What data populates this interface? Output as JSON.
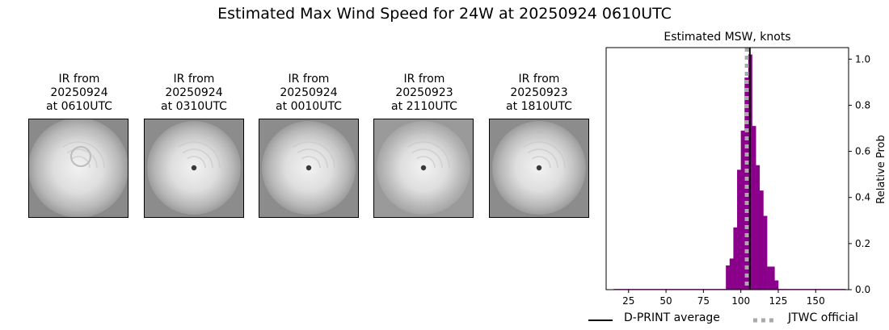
{
  "title": "Estimated Max Wind Speed for 24W at 20250924 0610UTC",
  "thumbnails": [
    {
      "lines": [
        "IR from",
        "20250924",
        "at 0610UTC"
      ],
      "eye": false
    },
    {
      "lines": [
        "IR from",
        "20250924",
        "at 0310UTC"
      ],
      "eye": true
    },
    {
      "lines": [
        "IR from",
        "20250924",
        "at 0010UTC"
      ],
      "eye": true
    },
    {
      "lines": [
        "IR from",
        "20250923",
        "at 2110UTC"
      ],
      "eye": true
    },
    {
      "lines": [
        "IR from",
        "20250923",
        "at 1810UTC"
      ],
      "eye": true
    }
  ],
  "chart_data": {
    "type": "bar",
    "title": "Estimated MSW, knots",
    "ylabel": "Relative Prob",
    "xlim": [
      10,
      172
    ],
    "ylim": [
      0,
      1.05
    ],
    "xticks": [
      25,
      50,
      75,
      100,
      125,
      150
    ],
    "yticks": [
      0.0,
      0.2,
      0.4,
      0.6,
      0.8,
      1.0
    ],
    "y_axis_side": "right",
    "bar_color": "#8b008b",
    "bin_width": 2.5,
    "bins_start": [
      15,
      17.5,
      20,
      22.5,
      25,
      27.5,
      30,
      32.5,
      35,
      37.5,
      40,
      42.5,
      45,
      47.5,
      50,
      52.5,
      55,
      57.5,
      60,
      62.5,
      65,
      67.5,
      70,
      72.5,
      75,
      77.5,
      80,
      82.5,
      85,
      87.5,
      90,
      92.5,
      95,
      97.5,
      100,
      102.5,
      105,
      107.5,
      110,
      112.5,
      115,
      117.5,
      120,
      122.5,
      125,
      127.5,
      130,
      132.5,
      135,
      137.5,
      140,
      142.5,
      145,
      147.5,
      150,
      152.5,
      155,
      157.5,
      160,
      162.5,
      165,
      167.5
    ],
    "values": [
      0.003,
      0.003,
      0.003,
      0.003,
      0.003,
      0.003,
      0.003,
      0.003,
      0.003,
      0.003,
      0.003,
      0.003,
      0.003,
      0.003,
      0.003,
      0.003,
      0.003,
      0.003,
      0.003,
      0.003,
      0.003,
      0.003,
      0.003,
      0.003,
      0.003,
      0.003,
      0.003,
      0.003,
      0.003,
      0.003,
      0.105,
      0.135,
      0.27,
      0.52,
      0.69,
      0.92,
      1.02,
      0.71,
      0.54,
      0.43,
      0.32,
      0.1,
      0.1,
      0.04,
      0.003,
      0.003,
      0.003,
      0.003,
      0.003,
      0.003,
      0.003,
      0.003,
      0.003,
      0.003,
      0.003,
      0.003,
      0.003,
      0.003,
      0.003,
      0.003,
      0.003,
      0.003
    ],
    "dprint_average": 106,
    "jtwc_official": 104,
    "legend": [
      {
        "label": "D-PRINT average",
        "color": "#000000",
        "style": "solid"
      },
      {
        "label": "JTWC official",
        "color": "#a9a9a9",
        "style": "dotted"
      }
    ]
  }
}
